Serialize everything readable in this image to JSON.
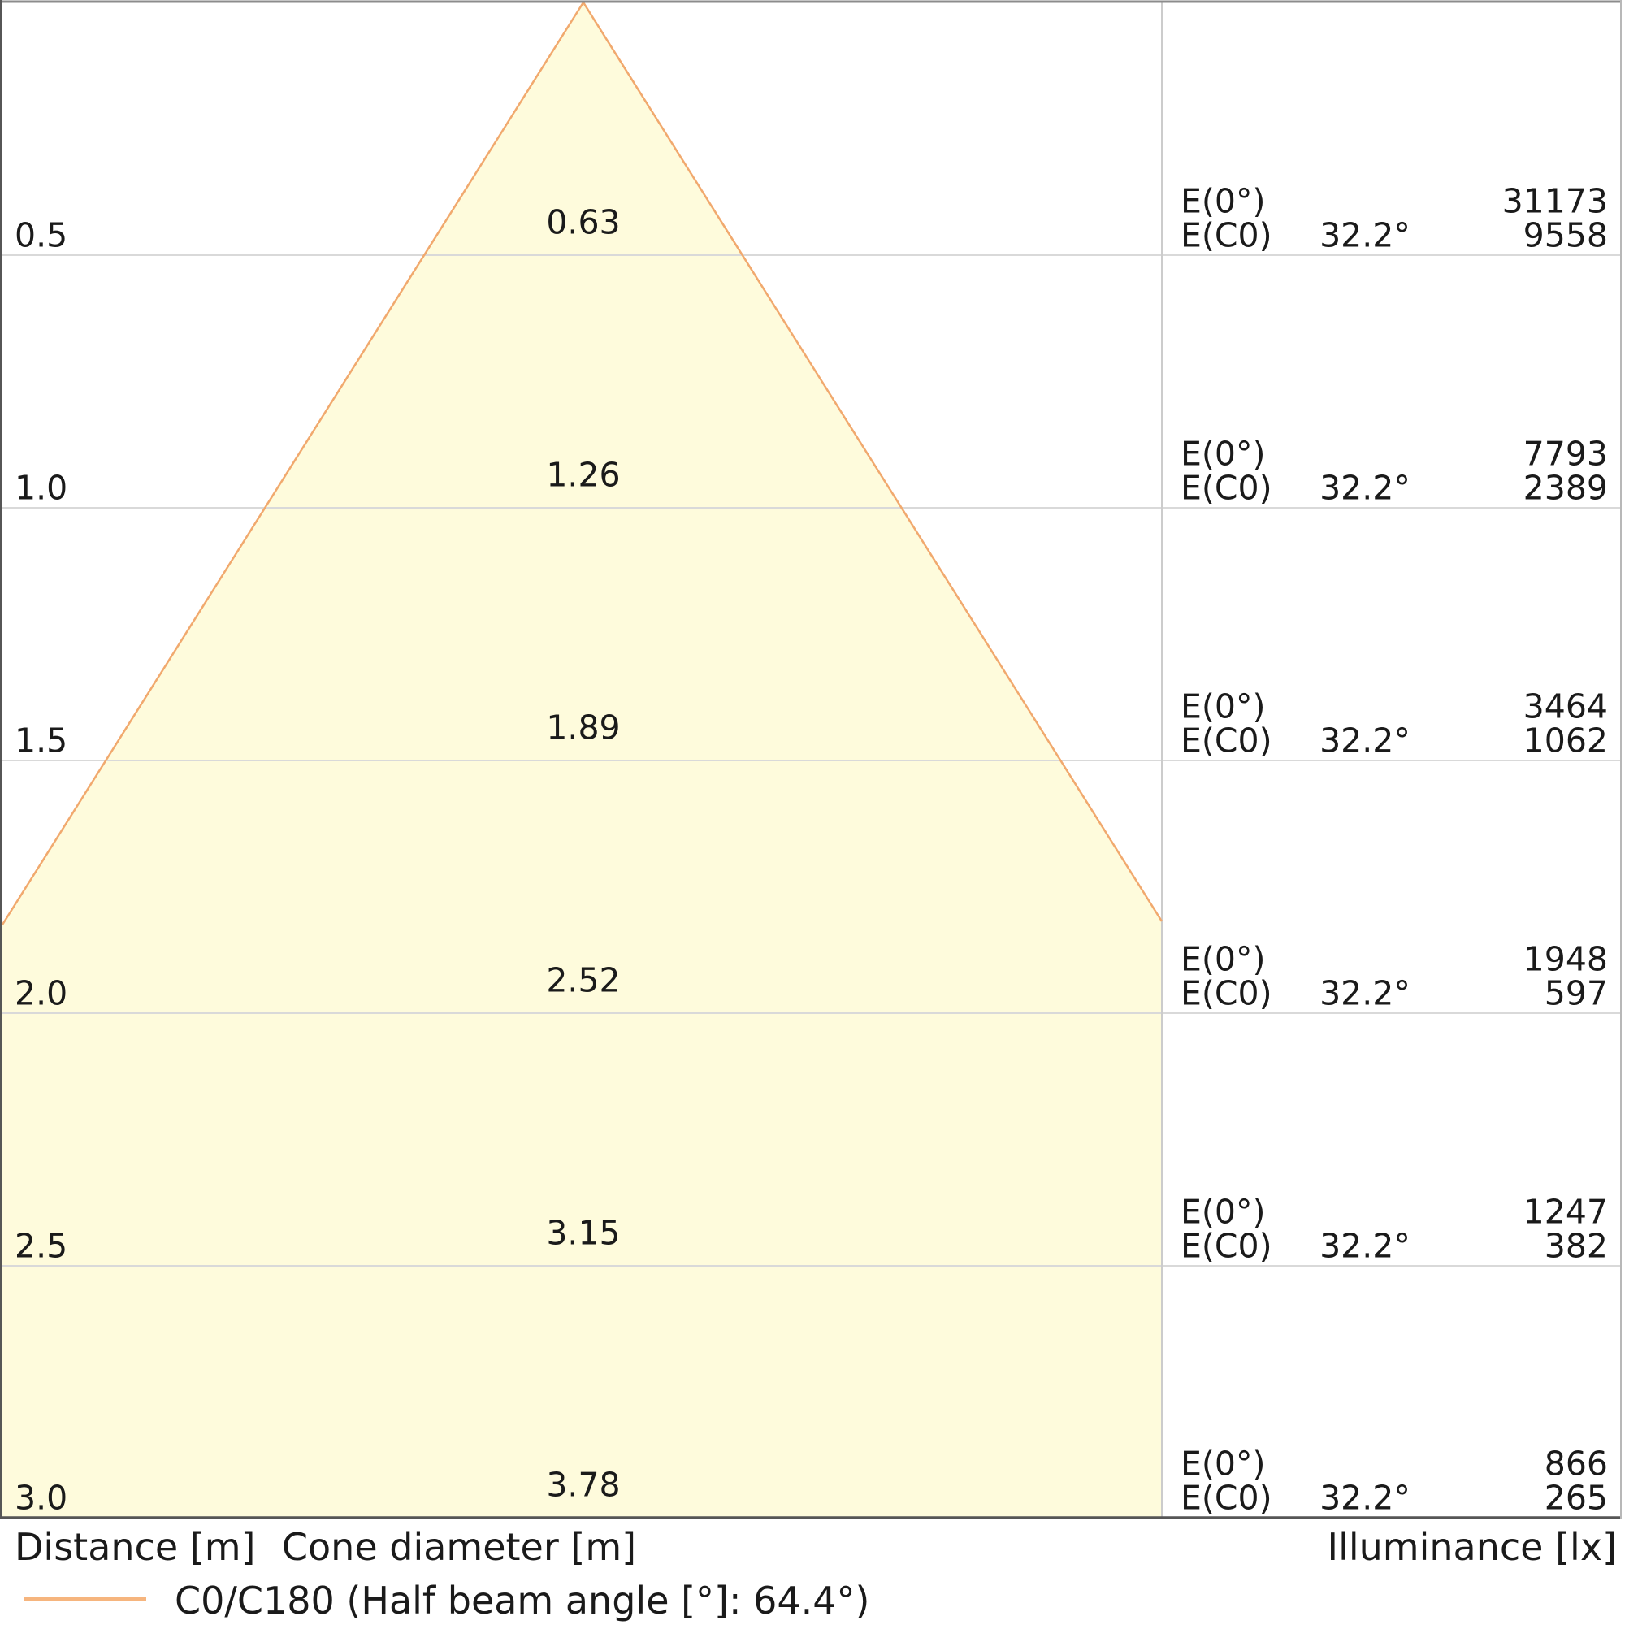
{
  "colors": {
    "cone_fill": "#fefbdc",
    "cone_line": "#f1a96e",
    "legend_line": "#f6b57e",
    "gridline": "#d9d9d9",
    "divider": "#cccccc",
    "border_dark": "#565656",
    "border_top": "#8c8c8c",
    "border_right": "#b8b8b8",
    "text": "#1a1a1a"
  },
  "labels": {
    "e0": "E(0°)",
    "ec0": "E(C0)"
  },
  "rows": [
    {
      "distance": "0.5",
      "diameter": "0.63",
      "angle": "32.2°",
      "e0_value": "31173",
      "ec0_value": "9558"
    },
    {
      "distance": "1.0",
      "diameter": "1.26",
      "angle": "32.2°",
      "e0_value": "7793",
      "ec0_value": "2389"
    },
    {
      "distance": "1.5",
      "diameter": "1.89",
      "angle": "32.2°",
      "e0_value": "3464",
      "ec0_value": "1062"
    },
    {
      "distance": "2.0",
      "diameter": "2.52",
      "angle": "32.2°",
      "e0_value": "1948",
      "ec0_value": "597"
    },
    {
      "distance": "2.5",
      "diameter": "3.15",
      "angle": "32.2°",
      "e0_value": "1247",
      "ec0_value": "382"
    },
    {
      "distance": "3.0",
      "diameter": "3.78",
      "angle": "32.2°",
      "e0_value": "866",
      "ec0_value": "265"
    }
  ],
  "axis": {
    "distance_label": "Distance [m]",
    "cone_diameter_label": "Cone diameter [m]",
    "illuminance_label": "Illuminance [lx]"
  },
  "legend": {
    "label": "C0/C180 (Half beam angle [°]: 64.4°)"
  },
  "chart_data": {
    "type": "area",
    "title": "Light distribution cone diagram",
    "xlabel": "Cone diameter [m]",
    "ylabel": "Distance [m]",
    "legend_entries": [
      "C0/C180 (Half beam angle [°]: 64.4°)"
    ],
    "half_beam_angle_deg": 64.4,
    "e_c0_angle_deg": 32.2,
    "distances_m": [
      0.5,
      1.0,
      1.5,
      2.0,
      2.5,
      3.0
    ],
    "cone_diameters_m": [
      0.63,
      1.26,
      1.89,
      2.52,
      3.15,
      3.78
    ],
    "series": [
      {
        "name": "E(0°) illuminance [lx]",
        "values": [
          31173,
          7793,
          3464,
          1948,
          1247,
          866
        ]
      },
      {
        "name": "E(C0) illuminance [lx]",
        "values": [
          9558,
          2389,
          1062,
          597,
          382,
          265
        ]
      }
    ],
    "layout_hints": {
      "cone_apex_top_center": true,
      "grid": "horizontal lines at each 0.5 m step",
      "value_table_position": "right column",
      "legend_position": "bottom-left"
    }
  }
}
